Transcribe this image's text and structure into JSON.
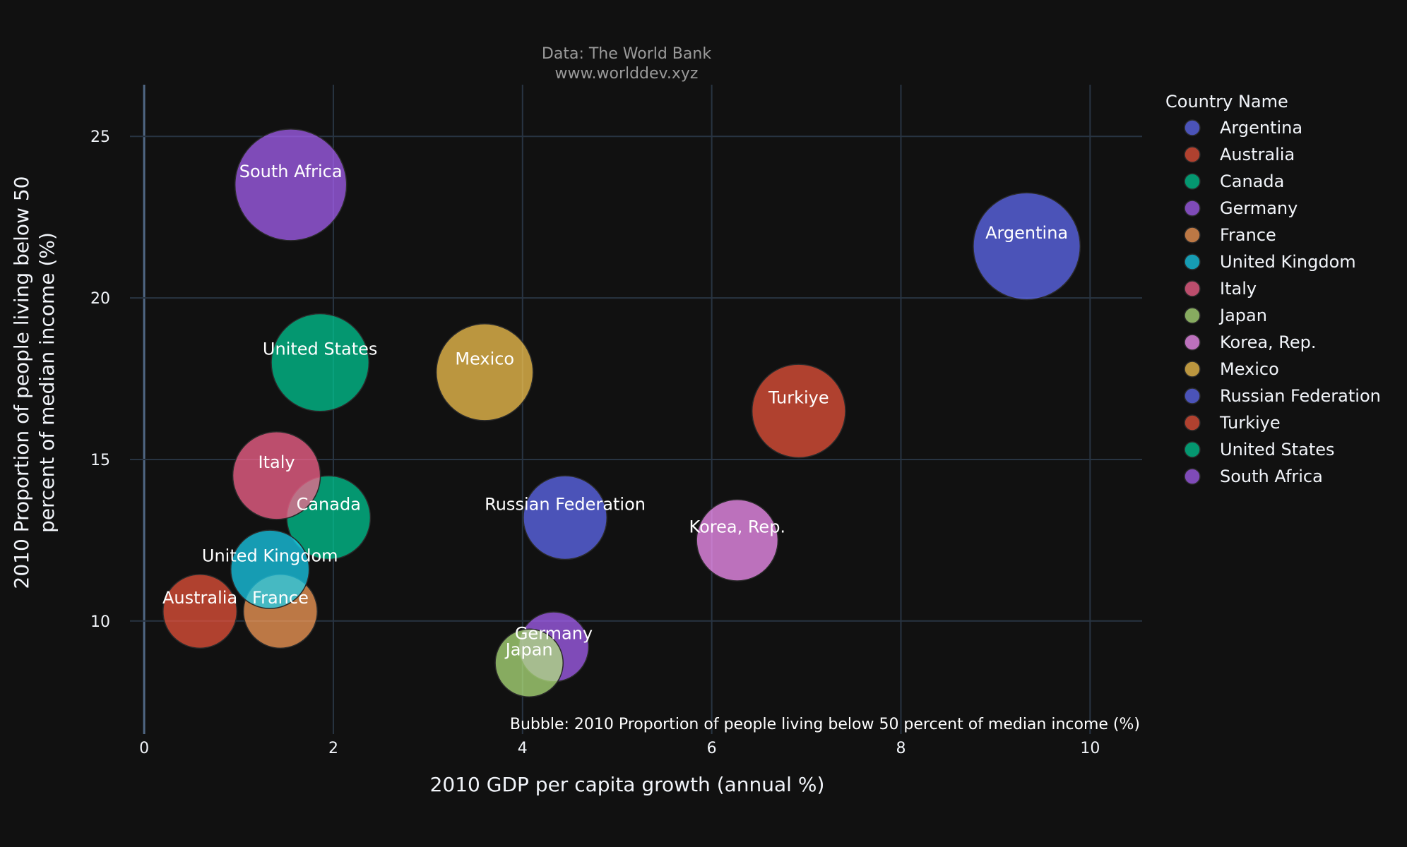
{
  "chart_data": {
    "type": "scatter",
    "source_line1": "Data: The World Bank",
    "source_line2": "www.worlddev.xyz",
    "xlabel": "2010 GDP per capita growth (annual %)",
    "ylabel_line1": "2010 Proportion of people living below 50",
    "ylabel_line2": "percent of median income (%)",
    "size_note": "Bubble: 2010 Proportion of people living below 50 percent of median income (%)",
    "xlim": [
      -0.15,
      10.55
    ],
    "ylim": [
      6.5,
      26.6
    ],
    "xticks": [
      0,
      2,
      4,
      6,
      8,
      10
    ],
    "yticks": [
      10,
      15,
      20,
      25
    ],
    "grid": true,
    "legend_title": "Country Name",
    "legend_position": "right",
    "series": [
      {
        "name": "Argentina",
        "x": 9.33,
        "y": 21.6,
        "size": 21.6,
        "color": "#636efa"
      },
      {
        "name": "Australia",
        "x": 0.59,
        "y": 10.3,
        "size": 10.3,
        "color": "#EF553B"
      },
      {
        "name": "Canada",
        "x": 1.95,
        "y": 13.2,
        "size": 13.2,
        "color": "#00cc96"
      },
      {
        "name": "Germany",
        "x": 4.33,
        "y": 9.2,
        "size": 9.2,
        "color": "#ab63fa"
      },
      {
        "name": "France",
        "x": 1.44,
        "y": 10.3,
        "size": 10.3,
        "color": "#FFA15A"
      },
      {
        "name": "United Kingdom",
        "x": 1.33,
        "y": 11.6,
        "size": 11.6,
        "color": "#19d3f3"
      },
      {
        "name": "Italy",
        "x": 1.4,
        "y": 14.5,
        "size": 14.5,
        "color": "#FF6692"
      },
      {
        "name": "Japan",
        "x": 4.07,
        "y": 8.7,
        "size": 8.7,
        "color": "#B6E880"
      },
      {
        "name": "Korea, Rep.",
        "x": 6.27,
        "y": 12.5,
        "size": 12.5,
        "color": "#FF97FF"
      },
      {
        "name": "Mexico",
        "x": 3.6,
        "y": 17.7,
        "size": 17.7,
        "color": "#FECB52"
      },
      {
        "name": "Russian Federation",
        "x": 4.45,
        "y": 13.2,
        "size": 13.2,
        "color": "#636efa"
      },
      {
        "name": "Turkiye",
        "x": 6.92,
        "y": 16.5,
        "size": 16.5,
        "color": "#EF553B"
      },
      {
        "name": "United States",
        "x": 1.86,
        "y": 18.0,
        "size": 18.0,
        "color": "#00cc96"
      },
      {
        "name": "South Africa",
        "x": 1.55,
        "y": 23.5,
        "size": 23.5,
        "color": "#ab63fa"
      }
    ]
  }
}
